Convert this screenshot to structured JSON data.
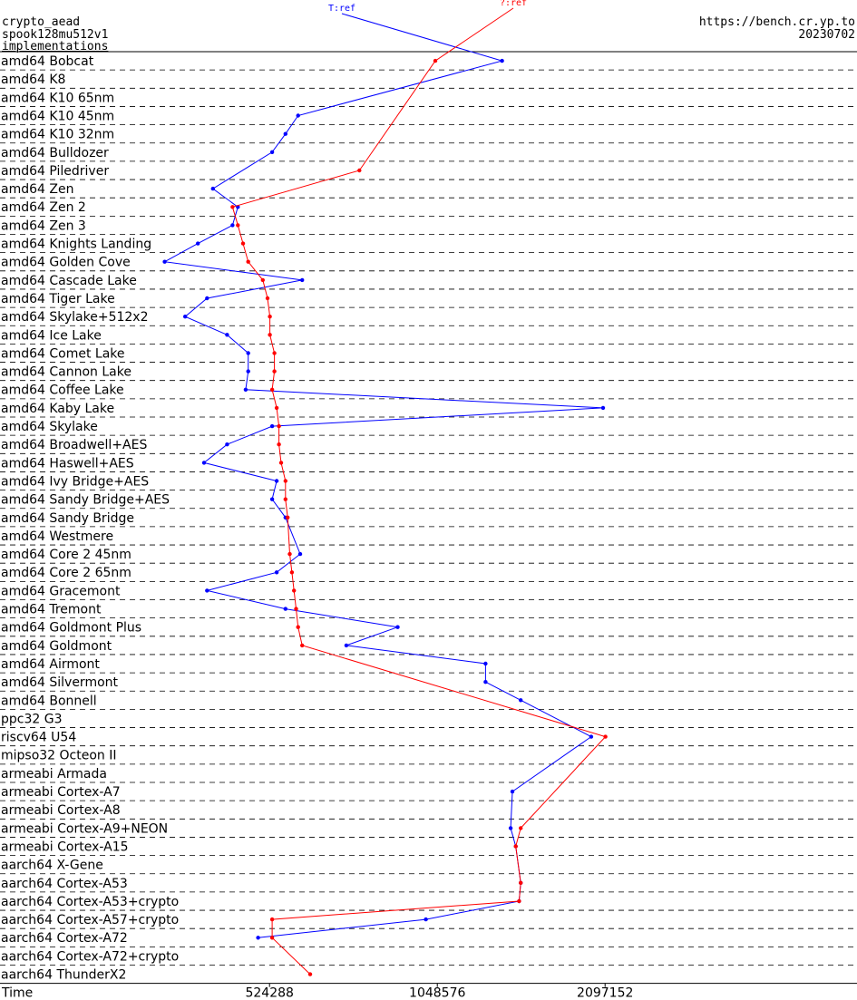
{
  "header": {
    "line1": "crypto_aead",
    "line2": "spook128mu512v1",
    "line3": "implementations",
    "url": "https://bench.cr.yp.to",
    "date": "20230702"
  },
  "chart_data": {
    "type": "line",
    "orientation": "horizontal",
    "x_scale": "log2",
    "xlim": [
      174762,
      3200000
    ],
    "xlabel": "Time",
    "x_ticks": [
      {
        "label": "Time",
        "value": null
      },
      {
        "label": "524288",
        "value": 524288
      },
      {
        "label": "1048576",
        "value": 1048576
      },
      {
        "label": "2097152",
        "value": 2097152
      }
    ],
    "series": [
      {
        "name": "T:ref",
        "color": "#0000ff"
      },
      {
        "name": "?:ref",
        "color": "#ff0000"
      }
    ],
    "rows": [
      {
        "label": "amd64 Bobcat",
        "ref": 1370000,
        "q": 1040000
      },
      {
        "label": "amd64 K8",
        "ref": null,
        "q": null
      },
      {
        "label": "amd64 K10 65nm",
        "ref": null,
        "q": null
      },
      {
        "label": "amd64 K10 45nm",
        "ref": 590000,
        "q": null
      },
      {
        "label": "amd64 K10 32nm",
        "ref": 560000,
        "q": null
      },
      {
        "label": "amd64 Bulldozer",
        "ref": 530000,
        "q": null
      },
      {
        "label": "amd64 Piledriver",
        "ref": null,
        "q": 760000
      },
      {
        "label": "amd64 Zen",
        "ref": 415000,
        "q": null
      },
      {
        "label": "amd64 Zen 2",
        "ref": 460000,
        "q": 450000
      },
      {
        "label": "amd64 Zen 3",
        "ref": 450000,
        "q": 460000
      },
      {
        "label": "amd64 Knights Landing",
        "ref": 390000,
        "q": 470000
      },
      {
        "label": "amd64 Golden Cove",
        "ref": 340000,
        "q": 480000
      },
      {
        "label": "amd64 Cascade Lake",
        "ref": 600000,
        "q": 510000
      },
      {
        "label": "amd64 Tiger Lake",
        "ref": 405000,
        "q": 520000
      },
      {
        "label": "amd64 Skylake+512x2",
        "ref": 370000,
        "q": 525000
      },
      {
        "label": "amd64 Ice Lake",
        "ref": 440000,
        "q": 525000
      },
      {
        "label": "amd64 Comet Lake",
        "ref": 480000,
        "q": 535000
      },
      {
        "label": "amd64 Cannon Lake",
        "ref": 480000,
        "q": 535000
      },
      {
        "label": "amd64 Coffee Lake",
        "ref": 475000,
        "q": 530000
      },
      {
        "label": "amd64 Kaby Lake",
        "ref": 2080000,
        "q": 540000
      },
      {
        "label": "amd64 Skylake",
        "ref": 530000,
        "q": 545000
      },
      {
        "label": "amd64 Broadwell+AES",
        "ref": 440000,
        "q": 545000
      },
      {
        "label": "amd64 Haswell+AES",
        "ref": 400000,
        "q": 550000
      },
      {
        "label": "amd64 Ivy Bridge+AES",
        "ref": 540000,
        "q": 560000
      },
      {
        "label": "amd64 Sandy Bridge+AES",
        "ref": 530000,
        "q": 560000
      },
      {
        "label": "amd64 Sandy Bridge",
        "ref": 560000,
        "q": 565000
      },
      {
        "label": "amd64 Westmere",
        "ref": null,
        "q": null
      },
      {
        "label": "amd64 Core 2 45nm",
        "ref": 595000,
        "q": 570000
      },
      {
        "label": "amd64 Core 2 65nm",
        "ref": 540000,
        "q": 575000
      },
      {
        "label": "amd64 Gracemont",
        "ref": 405000,
        "q": 580000
      },
      {
        "label": "amd64 Tremont",
        "ref": 560000,
        "q": 585000
      },
      {
        "label": "amd64 Goldmont Plus",
        "ref": 890000,
        "q": 590000
      },
      {
        "label": "amd64 Goldmont",
        "ref": 720000,
        "q": 600000
      },
      {
        "label": "amd64 Airmont",
        "ref": 1280000,
        "q": null
      },
      {
        "label": "amd64 Silvermont",
        "ref": 1280000,
        "q": null
      },
      {
        "label": "amd64 Bonnell",
        "ref": 1480000,
        "q": null
      },
      {
        "label": "ppc32 G3",
        "ref": null,
        "q": null
      },
      {
        "label": "riscv64 U54",
        "ref": 1980000,
        "q": 2100000
      },
      {
        "label": "mipso32 Octeon II",
        "ref": null,
        "q": null
      },
      {
        "label": "armeabi Armada",
        "ref": null,
        "q": null
      },
      {
        "label": "armeabi Cortex-A7",
        "ref": 1430000,
        "q": null
      },
      {
        "label": "armeabi Cortex-A8",
        "ref": null,
        "q": null
      },
      {
        "label": "armeabi Cortex-A9+NEON",
        "ref": 1420000,
        "q": 1480000
      },
      {
        "label": "armeabi Cortex-A15",
        "ref": 1450000,
        "q": 1450000
      },
      {
        "label": "aarch64 X-Gene",
        "ref": null,
        "q": null
      },
      {
        "label": "aarch64 Cortex-A53",
        "ref": 1480000,
        "q": 1480000
      },
      {
        "label": "aarch64 Cortex-A53+crypto",
        "ref": 1470000,
        "q": 1470000
      },
      {
        "label": "aarch64 Cortex-A57+crypto",
        "ref": 1000000,
        "q": 530000
      },
      {
        "label": "aarch64 Cortex-A72",
        "ref": 500000,
        "q": 530000
      },
      {
        "label": "aarch64 Cortex-A72+crypto",
        "ref": null,
        "q": null
      },
      {
        "label": "aarch64 ThunderX2",
        "ref": null,
        "q": 620000
      }
    ]
  }
}
